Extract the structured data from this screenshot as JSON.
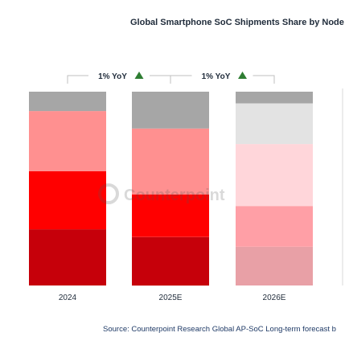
{
  "chart_data": {
    "type": "bar",
    "stacked": true,
    "normalized": true,
    "title": "Global Smartphone SoC Shipments Share by Node",
    "categories": [
      "2024",
      "2025E",
      "2026E"
    ],
    "stack_order": "bottom-to-top",
    "bars": [
      {
        "category": "2024",
        "segments": [
          0.29,
          0.3,
          0.31,
          0.1
        ],
        "colors": [
          "#c6000a",
          "#ff0000",
          "#ff9090",
          "#a6a6a6"
        ]
      },
      {
        "category": "2025E",
        "segments": [
          0.25,
          0.22,
          0.34,
          0.19
        ],
        "colors": [
          "#c6000a",
          "#ff0000",
          "#ff9090",
          "#a6a6a6"
        ]
      },
      {
        "category": "2026E",
        "segments": [
          0.2,
          0.21,
          0.32,
          0.21,
          0.06
        ],
        "colors": [
          "#e8a0a6",
          "#ff9fa6",
          "#ffd6da",
          "#e3e3e3",
          "#a6a6a6"
        ]
      }
    ],
    "annotations": [
      {
        "text": "1% YoY",
        "from": "2024",
        "to": "2025E",
        "arrow": "up",
        "arrow_color": "#2e7d32"
      },
      {
        "text": "1% YoY",
        "from": "2025E",
        "to": "2026E",
        "arrow": "up",
        "arrow_color": "#2e7d32"
      }
    ],
    "watermark": "Counterpoint",
    "grid": false,
    "legend": "none"
  },
  "source": "Source: Counterpoint Research Global AP-SoC Long-term forecast b"
}
